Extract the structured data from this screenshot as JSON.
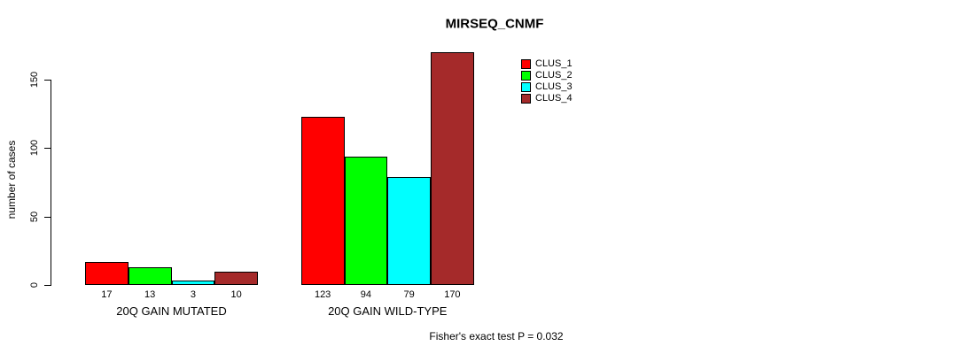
{
  "chart_data": {
    "type": "bar",
    "grouped": true,
    "title": "MIRSEQ_CNMF",
    "xlabel": "",
    "ylabel": "number of cases",
    "categories": [
      "20Q GAIN MUTATED",
      "20Q GAIN WILD-TYPE"
    ],
    "series": [
      {
        "name": "CLUS_1",
        "color": "#ff0000",
        "values": [
          17,
          123
        ]
      },
      {
        "name": "CLUS_2",
        "color": "#00ff00",
        "values": [
          13,
          94
        ]
      },
      {
        "name": "CLUS_3",
        "color": "#00ffff",
        "values": [
          3,
          79
        ]
      },
      {
        "name": "CLUS_4",
        "color": "#a52a2a",
        "values": [
          10,
          170
        ]
      }
    ],
    "bar_value_labels_shown": true,
    "yticks": [
      0,
      50,
      100,
      150
    ],
    "ylim": [
      0,
      150
    ],
    "grid": false,
    "legend_position": "top-right",
    "annotations": [
      "Fisher's exact test P = 0.032"
    ]
  },
  "colors": {
    "background": "#ffffff",
    "axis": "#000000",
    "text": "#000000"
  }
}
